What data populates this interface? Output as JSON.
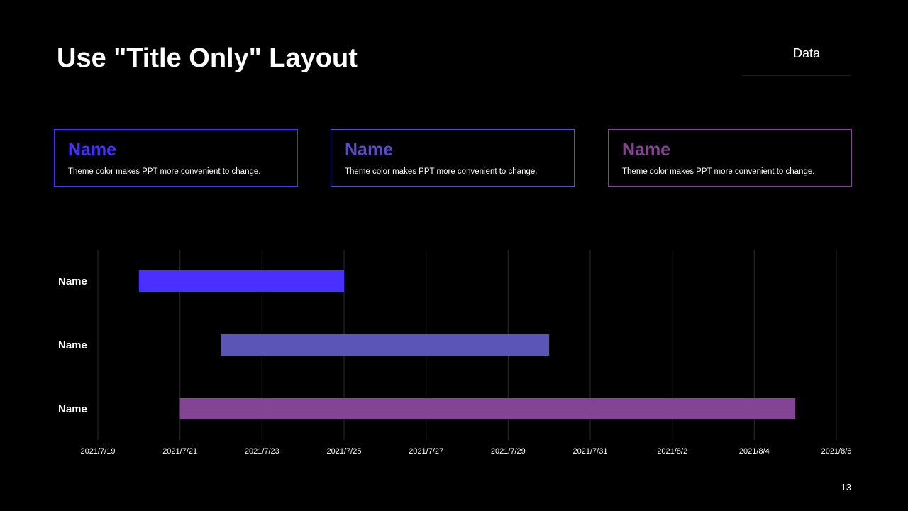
{
  "slide": {
    "title": "Use \"Title Only\" Layout",
    "section_label": "Data",
    "page_number": "13"
  },
  "cards": [
    {
      "name": "Name",
      "description": "Theme color makes PPT more convenient to change.",
      "color": "#4a30ff"
    },
    {
      "name": "Name",
      "description": "Theme color makes PPT more convenient to change.",
      "color": "#5b4bc4"
    },
    {
      "name": "Name",
      "description": "Theme color makes PPT more convenient to change.",
      "color": "#834496"
    }
  ],
  "chart_data": {
    "type": "gantt",
    "title": "",
    "xlabel": "",
    "ylabel": "",
    "x_range": [
      "2021-07-19",
      "2021-08-06"
    ],
    "x_ticks": [
      {
        "date": "2021-07-19",
        "label": "2021/7/19"
      },
      {
        "date": "2021-07-21",
        "label": "2021/7/21"
      },
      {
        "date": "2021-07-23",
        "label": "2021/7/23"
      },
      {
        "date": "2021-07-25",
        "label": "2021/7/25"
      },
      {
        "date": "2021-07-27",
        "label": "2021/7/27"
      },
      {
        "date": "2021-07-29",
        "label": "2021/7/29"
      },
      {
        "date": "2021-07-31",
        "label": "2021/7/31"
      },
      {
        "date": "2021-08-02",
        "label": "2021/8/2"
      },
      {
        "date": "2021-08-04",
        "label": "2021/8/4"
      },
      {
        "date": "2021-08-06",
        "label": "2021/8/6"
      }
    ],
    "grid": true,
    "legend": "none",
    "tasks": [
      {
        "label": "Name",
        "start": "2021-07-20",
        "end": "2021-07-25",
        "color": "#4a30ff"
      },
      {
        "label": "Name",
        "start": "2021-07-22",
        "end": "2021-07-30",
        "color": "#5b55b8"
      },
      {
        "label": "Name",
        "start": "2021-07-21",
        "end": "2021-08-05",
        "color": "#834496"
      }
    ]
  }
}
